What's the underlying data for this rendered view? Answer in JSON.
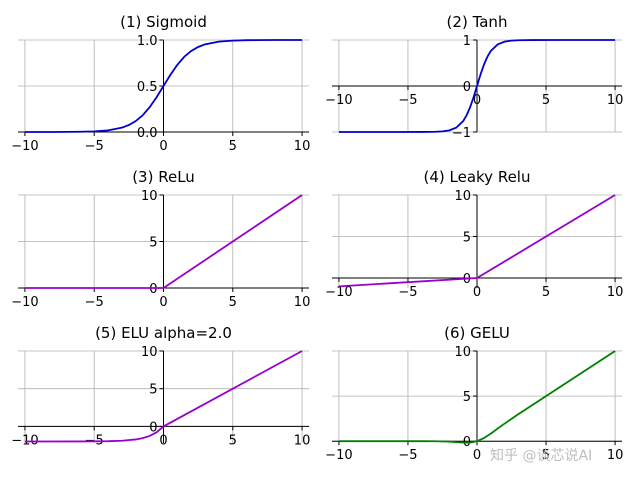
{
  "watermark": "知乎 @谈芯说AI",
  "chart_data": [
    {
      "type": "line",
      "title": "(1) Sigmoid",
      "xlim": [
        -10.5,
        10.5
      ],
      "ylim": [
        0,
        1.0
      ],
      "grid": true,
      "x_axis_at": 0,
      "y_axis_at": 0,
      "xticks": [
        -10,
        -5,
        0,
        5,
        10
      ],
      "xtick_labels": [
        "−10",
        "−5",
        "0",
        "5",
        "10"
      ],
      "yticks": [
        0,
        0.5,
        1.0
      ],
      "ytick_labels": [
        "0.0",
        "0.5",
        "1.0"
      ],
      "series": [
        {
          "color": "#0000cc",
          "x": [
            -10,
            -8,
            -6,
            -5,
            -4,
            -3,
            -2.5,
            -2,
            -1.5,
            -1,
            -0.5,
            0,
            0.5,
            1,
            1.5,
            2,
            2.5,
            3,
            4,
            5,
            6,
            8,
            10
          ],
          "y": [
            0.0,
            0.0003,
            0.0025,
            0.0067,
            0.018,
            0.047,
            0.076,
            0.119,
            0.182,
            0.269,
            0.378,
            0.5,
            0.622,
            0.731,
            0.818,
            0.881,
            0.924,
            0.953,
            0.982,
            0.993,
            0.998,
            1.0,
            1.0
          ]
        }
      ]
    },
    {
      "type": "line",
      "title": "(2) Tanh",
      "xlim": [
        -10.5,
        10.5
      ],
      "ylim": [
        -1,
        1.0
      ],
      "grid": true,
      "x_axis_at": 0,
      "y_axis_at": 0,
      "xticks": [
        -10,
        -5,
        0,
        5,
        10
      ],
      "xtick_labels": [
        "−10",
        "−5",
        "0",
        "5",
        "10"
      ],
      "yticks": [
        -1,
        0,
        1
      ],
      "ytick_labels": [
        "−1",
        "0",
        "1"
      ],
      "series": [
        {
          "color": "#0000cc",
          "x": [
            -10,
            -6,
            -4,
            -3,
            -2.5,
            -2,
            -1.5,
            -1,
            -0.75,
            -0.5,
            -0.25,
            0,
            0.25,
            0.5,
            0.75,
            1,
            1.5,
            2,
            2.5,
            3,
            4,
            6,
            10
          ],
          "y": [
            -1,
            -1,
            -0.999,
            -0.995,
            -0.987,
            -0.964,
            -0.905,
            -0.762,
            -0.635,
            -0.462,
            -0.245,
            0,
            0.245,
            0.462,
            0.635,
            0.762,
            0.905,
            0.964,
            0.987,
            0.995,
            0.999,
            1,
            1
          ]
        }
      ]
    },
    {
      "type": "line",
      "title": "(3) ReLu",
      "xlim": [
        -10.5,
        10.5
      ],
      "ylim": [
        0,
        10
      ],
      "grid": true,
      "x_axis_at": 0,
      "y_axis_at": 0,
      "xticks": [
        -10,
        -5,
        0,
        5,
        10
      ],
      "xtick_labels": [
        "−10",
        "−5",
        "0",
        "5",
        "10"
      ],
      "yticks": [
        0,
        5,
        10
      ],
      "ytick_labels": [
        "0",
        "5",
        "10"
      ],
      "series": [
        {
          "color": "#9900cc",
          "x": [
            -10,
            0,
            10
          ],
          "y": [
            0,
            0,
            10
          ]
        }
      ]
    },
    {
      "type": "line",
      "title": "(4) Leaky Relu",
      "xlim": [
        -10.5,
        10.5
      ],
      "ylim": [
        -1.2,
        10
      ],
      "grid": true,
      "x_axis_at": 0,
      "y_axis_at": 0,
      "xticks": [
        -10,
        -5,
        0,
        5,
        10
      ],
      "xtick_labels": [
        "−10",
        "−5",
        "0",
        "5",
        "10"
      ],
      "yticks": [
        0,
        5,
        10
      ],
      "ytick_labels": [
        "0",
        "5",
        "10"
      ],
      "series": [
        {
          "color": "#9900cc",
          "x": [
            -10,
            0,
            10
          ],
          "y": [
            -1,
            0,
            10
          ]
        }
      ]
    },
    {
      "type": "line",
      "title": "(5) ELU alpha=2.0",
      "xlim": [
        -10.5,
        10.5
      ],
      "ylim": [
        -2.2,
        10
      ],
      "grid": true,
      "x_axis_at": 0,
      "y_axis_at": 0,
      "xticks": [
        -10,
        -5,
        0,
        5,
        10
      ],
      "xtick_labels": [
        "−10",
        "−5",
        "0",
        "5",
        "10"
      ],
      "yticks": [
        0,
        5,
        10
      ],
      "ytick_labels": [
        "0",
        "5",
        "10"
      ],
      "series": [
        {
          "color": "#9900cc",
          "x": [
            -10,
            -6,
            -4,
            -3,
            -2,
            -1.5,
            -1,
            -0.5,
            0,
            10
          ],
          "y": [
            -2.0,
            -1.995,
            -1.963,
            -1.9,
            -1.729,
            -1.554,
            -1.264,
            -0.787,
            0,
            10
          ]
        }
      ]
    },
    {
      "type": "line",
      "title": "(6) GELU",
      "xlim": [
        -10.5,
        10.5
      ],
      "ylim": [
        -0.2,
        10
      ],
      "grid": true,
      "x_axis_at": 0,
      "y_axis_at": 0,
      "xticks": [
        -10,
        -5,
        0,
        5,
        10
      ],
      "xtick_labels": [
        "−10",
        "−5",
        "0",
        "5",
        "10"
      ],
      "yticks": [
        0,
        5,
        10
      ],
      "ytick_labels": [
        "0",
        "5",
        "10"
      ],
      "series": [
        {
          "color": "#008000",
          "x": [
            -10,
            -4,
            -3,
            -2,
            -1.5,
            -1,
            -0.5,
            0,
            0.5,
            1,
            1.5,
            2,
            3,
            4,
            10
          ],
          "y": [
            0,
            0,
            -0.004,
            -0.045,
            -0.1,
            -0.159,
            -0.154,
            0,
            0.346,
            0.841,
            1.4,
            1.955,
            2.996,
            4.0,
            10
          ]
        }
      ]
    }
  ]
}
